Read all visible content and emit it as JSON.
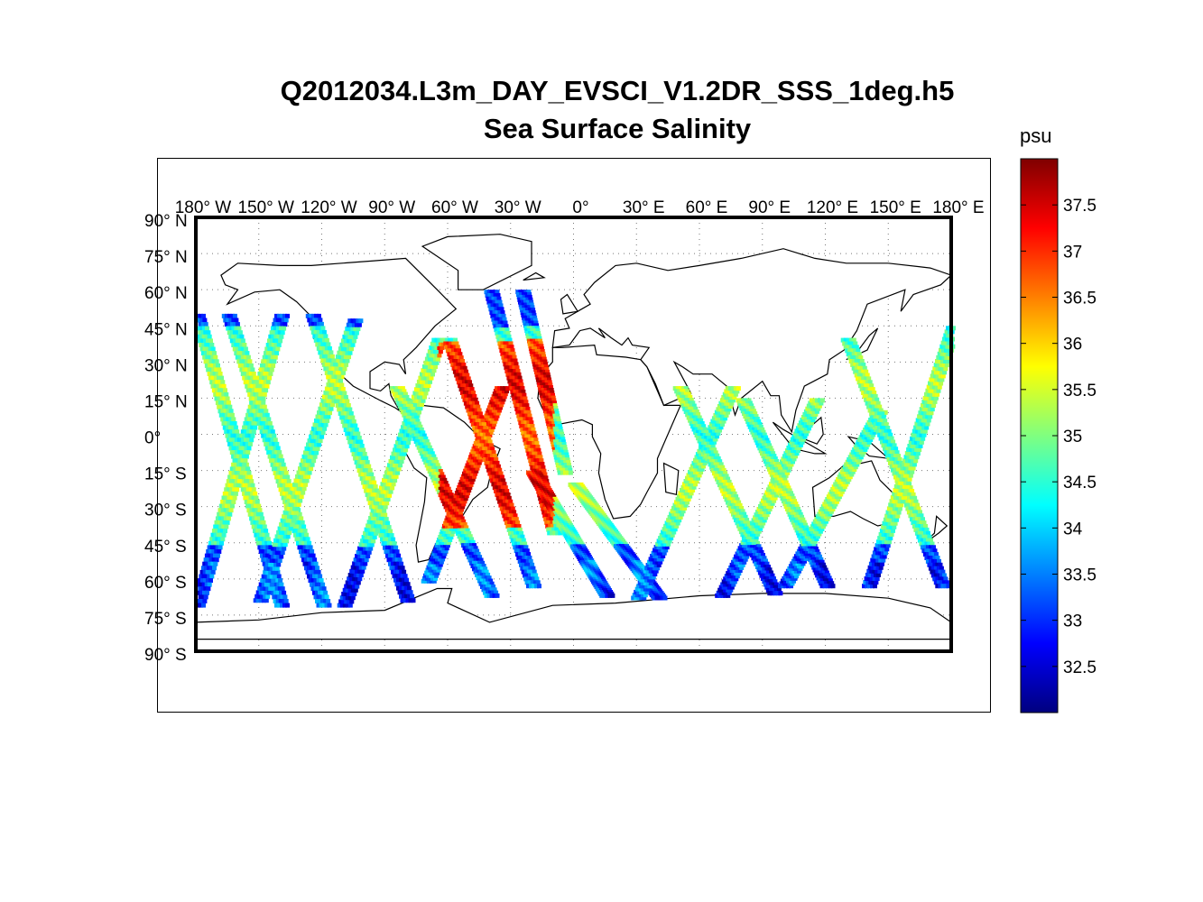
{
  "figure": {
    "title": "Q2012034.L3m_DAY_EVSCI_V1.2DR_SSS_1deg.h5",
    "subtitle": "Sea Surface Salinity"
  },
  "map": {
    "projection": "equirectangular",
    "grid": true,
    "lon_tick_labels": [
      "180° W",
      "150° W",
      "120° W",
      "90° W",
      "60° W",
      "30° W",
      "0°",
      "30° E",
      "60° E",
      "90° E",
      "120° E",
      "150° E",
      "180° E"
    ],
    "lat_tick_labels": [
      "90° N",
      "75° N",
      "60° N",
      "45° N",
      "30° N",
      "15° N",
      "0°",
      "15° S",
      "30° S",
      "45° S",
      "60° S",
      "75° S",
      "90° S"
    ],
    "lon_ticks": [
      -180,
      -150,
      -120,
      -90,
      -60,
      -30,
      0,
      30,
      60,
      90,
      120,
      150,
      180
    ],
    "lat_ticks": [
      90,
      75,
      60,
      45,
      30,
      15,
      0,
      -15,
      -30,
      -45,
      -60,
      -75,
      -90
    ],
    "coastline_color": "#000000"
  },
  "colorbar": {
    "unit_label": "psu",
    "ticks": [
      32.5,
      33,
      33.5,
      34,
      34.5,
      35,
      35.5,
      36,
      36.5,
      37,
      37.5
    ],
    "tick_labels": [
      "32.5",
      "33",
      "33.5",
      "34",
      "34.5",
      "35",
      "35.5",
      "36",
      "36.5",
      "37",
      "37.5"
    ],
    "range": [
      32,
      38
    ],
    "colormap": "jet"
  },
  "chart_data": {
    "type": "heatmap",
    "title": "Q2012034.L3m_DAY_EVSCI_V1.2DR_SSS_1deg.h5",
    "subtitle": "Sea Surface Salinity",
    "xlabel": "",
    "ylabel": "",
    "xlim": [
      -180,
      180
    ],
    "ylim": [
      -90,
      90
    ],
    "value_unit": "psu",
    "value_range": [
      32,
      38
    ],
    "description_of_data": "satellite swath tracks of sea surface salinity; saltiest (~37.5 psu) in subtropical Atlantic, freshest (~32.5 psu) at high latitudes",
    "tracks": [
      {
        "lon0": -180,
        "lon1": -140,
        "lat0": 50,
        "lat1": -70
      },
      {
        "lon0": -140,
        "lon1": -180,
        "lat0": 50,
        "lat1": -70
      },
      {
        "lon0": -165,
        "lon1": -120,
        "lat0": 50,
        "lat1": -70
      },
      {
        "lon0": -150,
        "lon1": -105,
        "lat0": -68,
        "lat1": 48
      },
      {
        "lon0": -125,
        "lon1": -80,
        "lat0": 50,
        "lat1": -68
      },
      {
        "lon0": -110,
        "lon1": -65,
        "lat0": -70,
        "lat1": 40
      },
      {
        "lon0": -85,
        "lon1": -40,
        "lat0": 20,
        "lat1": -66
      },
      {
        "lon0": -70,
        "lon1": -35,
        "lat0": -60,
        "lat1": 20
      },
      {
        "lon0": -60,
        "lon1": -20,
        "lat0": 40,
        "lat1": -62
      },
      {
        "lon0": -40,
        "lon1": -10,
        "lat0": 60,
        "lat1": -40
      },
      {
        "lon0": -25,
        "lon1": -5,
        "lat0": 60,
        "lat1": -15
      },
      {
        "lon0": -20,
        "lon1": 15,
        "lat0": -15,
        "lat1": -66
      },
      {
        "lon0": 0,
        "lon1": 40,
        "lat0": -20,
        "lat1": -67
      },
      {
        "lon0": 30,
        "lon1": 75,
        "lat0": -67,
        "lat1": 20
      },
      {
        "lon0": 50,
        "lon1": 95,
        "lat0": 20,
        "lat1": -65
      },
      {
        "lon0": 70,
        "lon1": 115,
        "lat0": -66,
        "lat1": 15
      },
      {
        "lon0": 80,
        "lon1": 120,
        "lat0": 15,
        "lat1": -62
      },
      {
        "lon0": 100,
        "lon1": 145,
        "lat0": -62,
        "lat1": 10
      },
      {
        "lon0": 130,
        "lon1": 175,
        "lat0": 40,
        "lat1": -62
      },
      {
        "lon0": 140,
        "lon1": 180,
        "lat0": -62,
        "lat1": 45
      }
    ]
  }
}
